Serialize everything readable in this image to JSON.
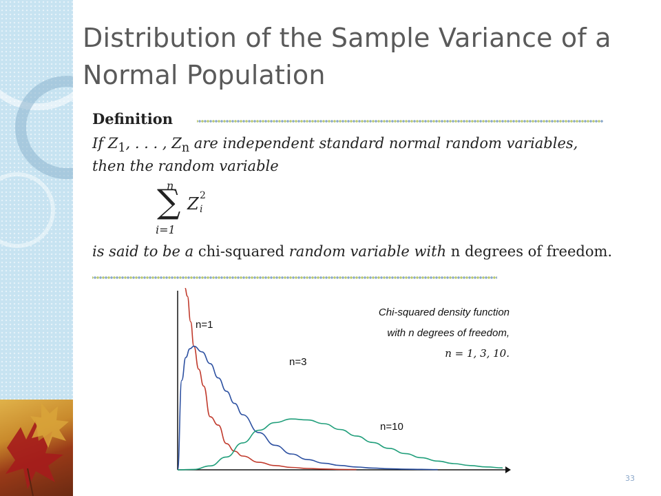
{
  "slide": {
    "title": "Distribution of the Sample Variance of a Normal Population",
    "page_number": "33"
  },
  "definition": {
    "heading": "Definition",
    "line1_prefix": "If Z",
    "line1_sub1": "1",
    "line1_mid": ", . . . , Z",
    "line1_subn": "n",
    "line1_suffix": " are independent standard normal random variables,",
    "line2": "then the random variable",
    "formula": {
      "upper_limit": "n",
      "sigma": "∑",
      "lower_limit": "i=1",
      "term": "Z",
      "superscript": "2",
      "subscript": "i"
    },
    "line3_a": "is said to be a ",
    "line3_b": "chi-squared",
    "line3_c": " random variable with ",
    "line3_d": "n degrees of freedom."
  },
  "chart_data": {
    "type": "line",
    "annotation": [
      "Chi-squared density function",
      "with n degrees of freedom,",
      "n = 1, 3, 10."
    ],
    "x_range": [
      0,
      20
    ],
    "y_range": [
      0,
      0.34
    ],
    "series": [
      {
        "name": "n=1",
        "color": "#c0392b",
        "x": [
          0.45,
          0.6,
          0.8,
          1.0,
          1.3,
          1.6,
          2.0,
          2.5,
          3.0,
          3.5,
          4.0,
          5.0,
          6.0,
          7.0,
          8.0,
          9.0,
          10.0,
          11.0
        ],
        "y": [
          0.41,
          0.34,
          0.29,
          0.242,
          0.197,
          0.164,
          0.104,
          0.0876,
          0.0514,
          0.0366,
          0.027,
          0.0147,
          0.0083,
          0.0047,
          0.0027,
          0.0016,
          0.00085,
          0.0005
        ]
      },
      {
        "name": "n=3",
        "color": "#2b4fa0",
        "x": [
          0,
          0.25,
          0.5,
          0.75,
          1.0,
          1.5,
          2.0,
          2.5,
          3.0,
          3.5,
          4.0,
          5.0,
          6.0,
          7.0,
          8.0,
          9.0,
          10.0,
          11.0,
          12.0,
          13.0,
          14.0,
          15.0,
          16.0
        ],
        "y": [
          0,
          0.175,
          0.22,
          0.237,
          0.242,
          0.231,
          0.208,
          0.18,
          0.154,
          0.13,
          0.108,
          0.073,
          0.048,
          0.031,
          0.02,
          0.013,
          0.0085,
          0.0055,
          0.0035,
          0.0022,
          0.0014,
          0.0009,
          0.0004
        ]
      },
      {
        "name": "n=10",
        "color": "#1f9e7a",
        "x": [
          0,
          1,
          2,
          3,
          4,
          5,
          6,
          7,
          8,
          9,
          10,
          11,
          12,
          13,
          14,
          15,
          16,
          17,
          18,
          19,
          20
        ],
        "y": [
          0,
          0.0008,
          0.0077,
          0.0251,
          0.0527,
          0.0775,
          0.0925,
          0.0996,
          0.0977,
          0.0904,
          0.0789,
          0.0662,
          0.0535,
          0.0421,
          0.0319,
          0.0237,
          0.0171,
          0.0121,
          0.0083,
          0.0057,
          0.0038
        ]
      }
    ],
    "series_labels": [
      "n=1",
      "n=3",
      "n=10"
    ]
  }
}
